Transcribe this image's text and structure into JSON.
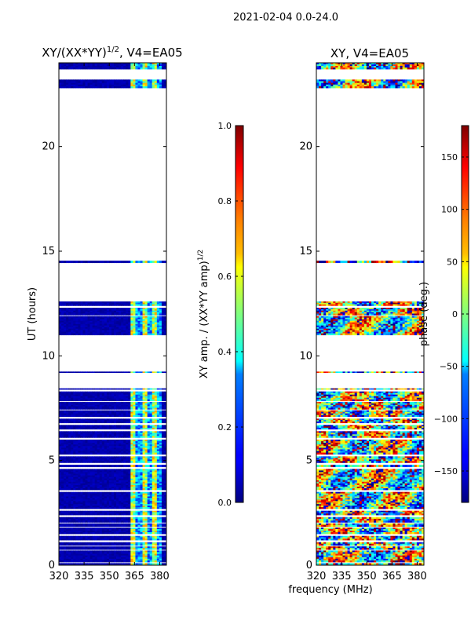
{
  "figure_title": "2021-02-04 0.0-24.0",
  "shared_xlabel": "frequency (MHz)",
  "chart_data": [
    {
      "type": "heatmap",
      "title_main": "XY/(XX*YY)",
      "title_sup": "1/2",
      "title_tail": ", V4=EA05",
      "ylabel": "UT (hours)",
      "xlim": [
        320,
        384
      ],
      "ylim": [
        0,
        24
      ],
      "xticks": [
        320,
        335,
        350,
        365,
        380
      ],
      "yticks": [
        0,
        5,
        10,
        15,
        20
      ],
      "colorbar": {
        "label_main": "XY amp. / (XX*YY amp)",
        "label_sup": "1/2",
        "range": [
          0.0,
          1.0
        ],
        "ticks": [
          "0.0",
          "0.2",
          "0.4",
          "0.6",
          "0.8",
          "1.0"
        ],
        "colormap": "jet"
      },
      "data_blocks_ut": [
        [
          0.0,
          0.1
        ],
        [
          0.15,
          0.7
        ],
        [
          0.75,
          0.9
        ],
        [
          0.95,
          1.1
        ],
        [
          1.2,
          1.4
        ],
        [
          1.5,
          1.8
        ],
        [
          1.85,
          2.0
        ],
        [
          2.05,
          2.3
        ],
        [
          2.4,
          2.6
        ],
        [
          2.7,
          3.5
        ],
        [
          3.6,
          4.6
        ],
        [
          4.7,
          4.8
        ],
        [
          4.9,
          5.2
        ],
        [
          5.3,
          6.0
        ],
        [
          6.1,
          6.4
        ],
        [
          6.5,
          6.7
        ],
        [
          6.8,
          7.0
        ],
        [
          7.1,
          7.4
        ],
        [
          7.45,
          7.8
        ],
        [
          7.85,
          8.3
        ],
        [
          8.4,
          8.45
        ],
        [
          9.2,
          9.25
        ],
        [
          11.0,
          11.9
        ],
        [
          11.95,
          12.3
        ],
        [
          12.4,
          12.6
        ],
        [
          14.45,
          14.55
        ],
        [
          22.8,
          23.2
        ],
        [
          23.7,
          24.0
        ]
      ]
    },
    {
      "type": "heatmap",
      "title": "XY, V4=EA05",
      "xlim": [
        320,
        384
      ],
      "ylim": [
        0,
        24
      ],
      "xticks": [
        320,
        335,
        350,
        365,
        380
      ],
      "yticks": [
        0,
        5,
        10,
        15,
        20
      ],
      "colorbar": {
        "label": "phase (deg.)",
        "range": [
          -180,
          180
        ],
        "ticks": [
          "−150",
          "−100",
          "−50",
          "0",
          "50",
          "100",
          "150"
        ],
        "colormap": "jet"
      },
      "data_blocks_ut": [
        [
          0.0,
          0.1
        ],
        [
          0.15,
          0.7
        ],
        [
          0.75,
          0.9
        ],
        [
          0.95,
          1.1
        ],
        [
          1.2,
          1.4
        ],
        [
          1.5,
          1.8
        ],
        [
          1.85,
          2.0
        ],
        [
          2.05,
          2.3
        ],
        [
          2.4,
          2.6
        ],
        [
          2.7,
          3.5
        ],
        [
          3.6,
          4.6
        ],
        [
          4.7,
          4.8
        ],
        [
          4.9,
          5.2
        ],
        [
          5.3,
          6.0
        ],
        [
          6.1,
          6.4
        ],
        [
          6.5,
          6.7
        ],
        [
          6.8,
          7.0
        ],
        [
          7.1,
          7.4
        ],
        [
          7.45,
          7.8
        ],
        [
          7.85,
          8.3
        ],
        [
          8.4,
          8.45
        ],
        [
          9.2,
          9.25
        ],
        [
          11.0,
          11.9
        ],
        [
          11.95,
          12.3
        ],
        [
          12.4,
          12.6
        ],
        [
          14.45,
          14.55
        ],
        [
          22.8,
          23.2
        ],
        [
          23.7,
          24.0
        ]
      ]
    }
  ]
}
